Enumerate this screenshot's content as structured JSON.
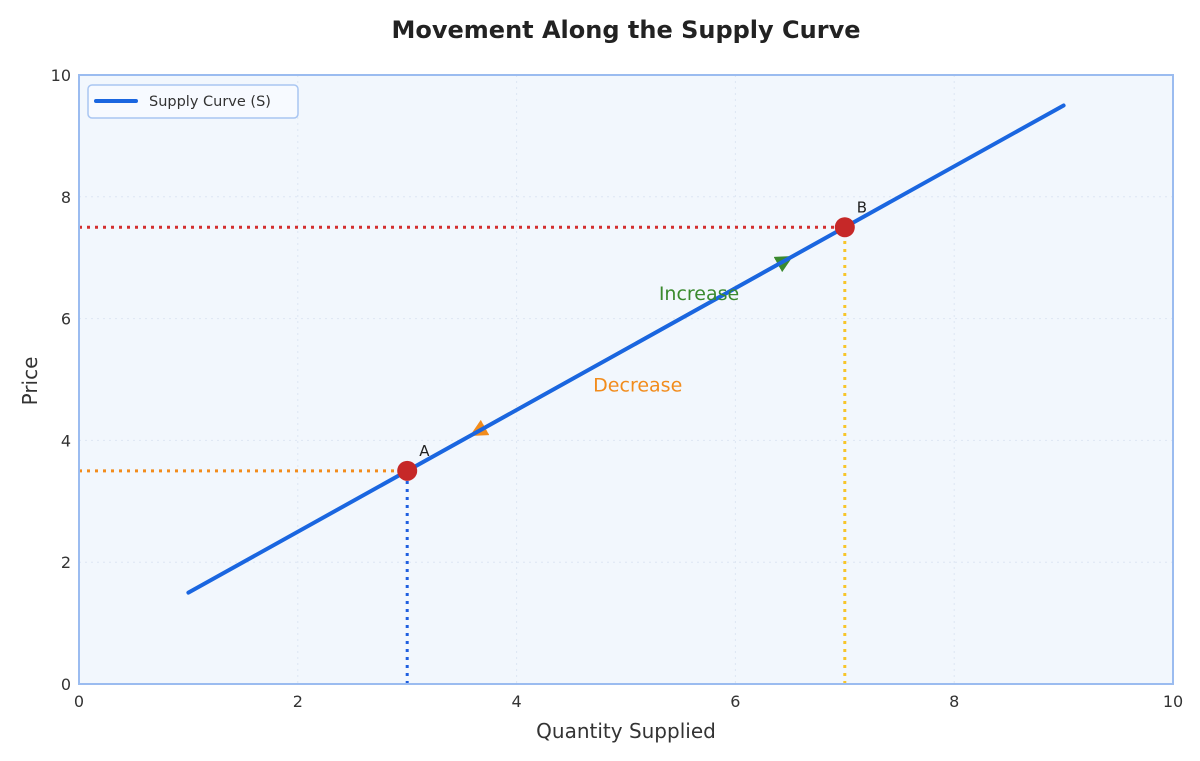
{
  "chart_data": {
    "type": "line",
    "title": "Movement Along the Supply Curve",
    "xlabel": "Quantity Supplied",
    "ylabel": "Price",
    "xlim": [
      0,
      10
    ],
    "ylim": [
      0,
      10
    ],
    "xticks": [
      "0",
      "2",
      "4",
      "6",
      "8",
      "10"
    ],
    "yticks": [
      "0",
      "2",
      "4",
      "6",
      "8",
      "10"
    ],
    "grid": true,
    "legend_position": "upper left",
    "series": [
      {
        "name": "Supply Curve (S)",
        "color": "#1a66e0",
        "x": [
          1,
          9
        ],
        "y": [
          1.5,
          9.5
        ]
      }
    ],
    "points": [
      {
        "label": "A",
        "x": 3,
        "y": 3.5,
        "color": "#c62828"
      },
      {
        "label": "B",
        "x": 7,
        "y": 7.5,
        "color": "#c62828"
      }
    ],
    "reference_lines": [
      {
        "orientation": "horizontal",
        "y": 3.5,
        "x_from": 0,
        "x_to": 3,
        "color": "#f28c1c",
        "style": "dotted"
      },
      {
        "orientation": "vertical",
        "x": 3,
        "y_from": 0,
        "y_to": 3.5,
        "color": "#1f5fe0",
        "style": "dotted"
      },
      {
        "orientation": "horizontal",
        "y": 7.5,
        "x_from": 0,
        "x_to": 7,
        "color": "#d32f2f",
        "style": "dotted"
      },
      {
        "orientation": "vertical",
        "x": 7,
        "y_from": 0,
        "y_to": 7.5,
        "color": "#f7c52a",
        "style": "dotted"
      }
    ],
    "annotations": [
      {
        "text": "Increase",
        "x": 5.3,
        "y": 6.4,
        "color": "#3a8a2e",
        "arrow_from": [
          3,
          3.5
        ],
        "arrow_to": [
          6.5,
          7.0
        ]
      },
      {
        "text": "Decrease",
        "x": 4.7,
        "y": 4.9,
        "color": "#f28c1c",
        "arrow_from": [
          7,
          7.5
        ],
        "arrow_to": [
          3.6,
          4.1
        ]
      }
    ]
  },
  "legend": {
    "label": "Supply Curve (S)"
  },
  "colors": {
    "plot_background": "#f2f7fd",
    "plot_border": "#9bbcf0",
    "supply_line": "#1a66e0",
    "point": "#c62828",
    "increase": "#3a8a2e",
    "decrease": "#f28c1c"
  }
}
